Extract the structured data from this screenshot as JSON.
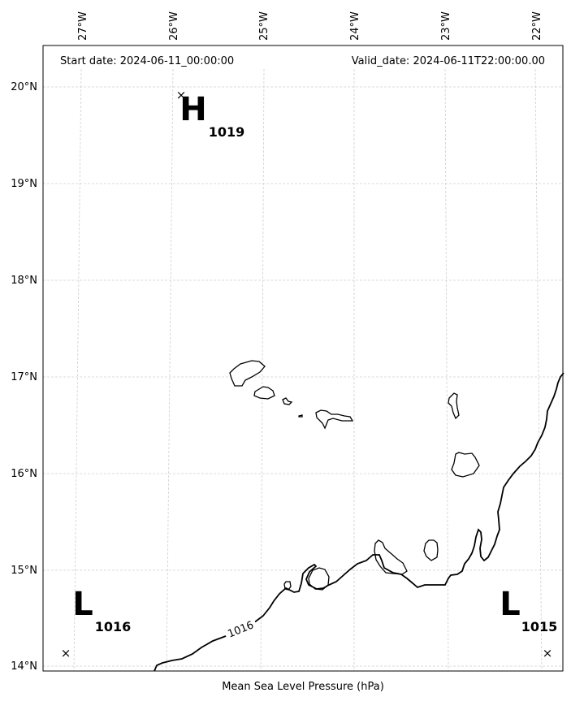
{
  "header": {
    "start_date": "Start date: 2024-06-11_00:00:00",
    "valid_date": "Valid_date: 2024-06-11T22:00:00.00"
  },
  "footer": {
    "caption": "Mean Sea Level Pressure (hPa)"
  },
  "axes": {
    "lon_labels": [
      "27°W",
      "26°W",
      "25°W",
      "24°W",
      "23°W",
      "22°W"
    ],
    "lat_labels": [
      "20°N",
      "19°N",
      "18°N",
      "17°N",
      "16°N",
      "15°N",
      "14°N"
    ]
  },
  "pressure_centers": [
    {
      "type": "H",
      "value": "1019"
    },
    {
      "type": "L",
      "value": "1016"
    },
    {
      "type": "L",
      "value": "1015"
    }
  ],
  "isobar_label": "1016",
  "colors": {
    "grid": "#cfcfcf",
    "line": "#000000",
    "background": "#ffffff"
  }
}
